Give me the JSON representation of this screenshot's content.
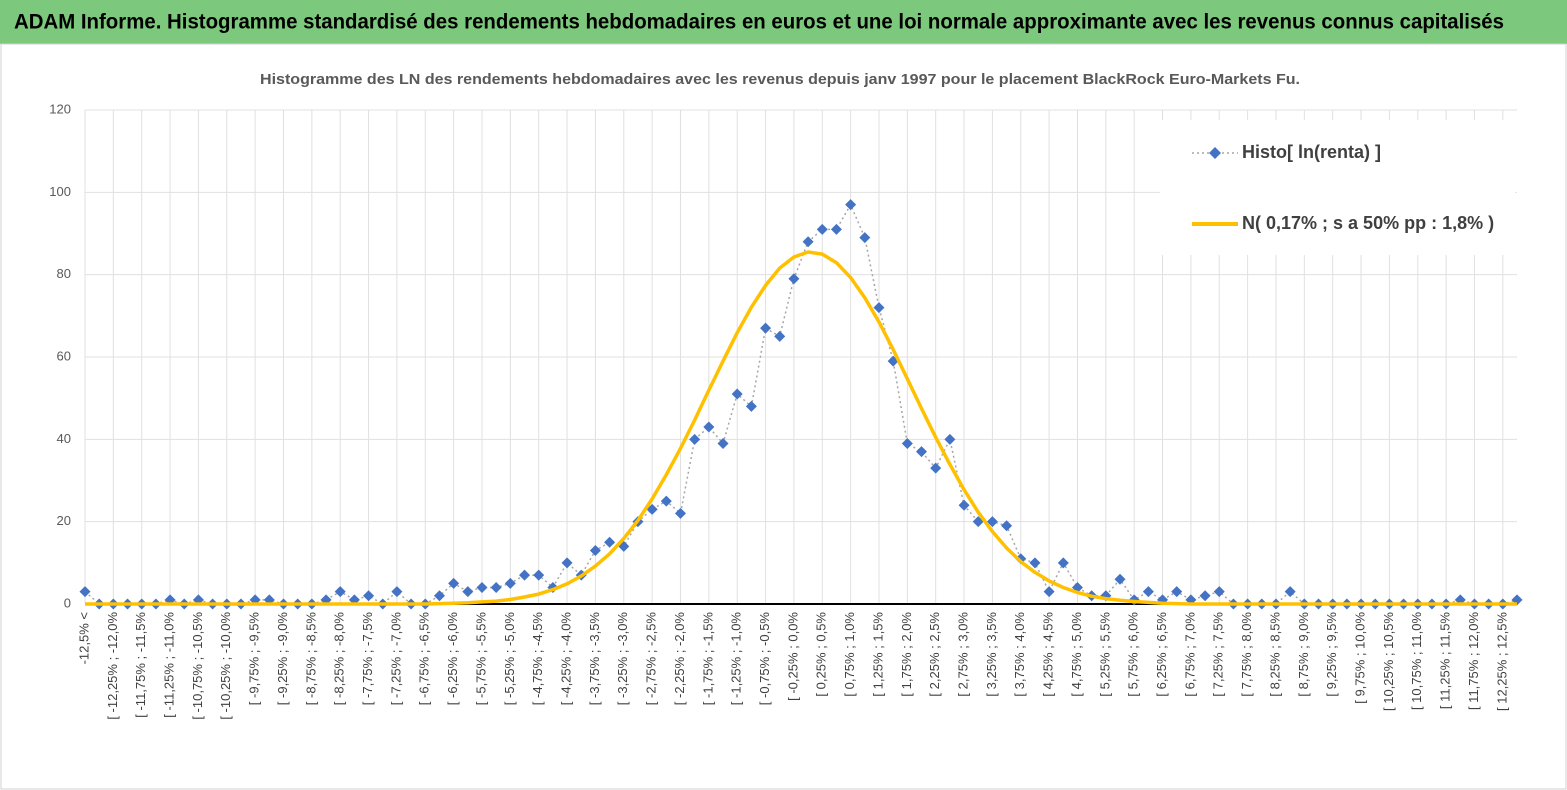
{
  "header": {
    "title": "ADAM Informe. Histogramme standardisé des rendements hebdomadaires en euros et une loi normale approximante avec les revenus connus capitalisés"
  },
  "chart_data": {
    "type": "line",
    "title": "Histogramme des LN des rendements hebdomadaires avec les revenus depuis janv 1997 pour le placement BlackRock Euro-Markets Fu.",
    "categories": [
      "-12,5% <",
      null,
      "[ -12,25% ; -12,0%",
      null,
      "[ -11,75% ; -11,5%",
      null,
      "[ -11,25% ; -11,0%",
      null,
      "[ -10,75% ; -10,5%",
      null,
      "[ -10,25% ; -10,0%",
      null,
      "[ -9,75% ; -9,5%",
      null,
      "[ -9,25% ; -9,0%",
      null,
      "[ -8,75% ; -8,5%",
      null,
      "[ -8,25% ; -8,0%",
      null,
      "[ -7,75% ; -7,5%",
      null,
      "[ -7,25% ; -7,0%",
      null,
      "[ -6,75% ; -6,5%",
      null,
      "[ -6,25% ; -6,0%",
      null,
      "[ -5,75% ; -5,5%",
      null,
      "[ -5,25% ; -5,0%",
      null,
      "[ -4,75% ; -4,5%",
      null,
      "[ -4,25% ; -4,0%",
      null,
      "[ -3,75% ; -3,5%",
      null,
      "[ -3,25% ; -3,0%",
      null,
      "[ -2,75% ; -2,5%",
      null,
      "[ -2,25% ; -2,0%",
      null,
      "[ -1,75% ; -1,5%",
      null,
      "[ -1,25% ; -1,0%",
      null,
      "[ -0,75% ; -0,5%",
      null,
      "[ -0,25% ; 0,0%",
      null,
      "[ 0,25% ; 0,5%",
      null,
      "[ 0,75% ; 1,0%",
      null,
      "[ 1,25% ; 1,5%",
      null,
      "[ 1,75% ; 2,0%",
      null,
      "[ 2,25% ; 2,5%",
      null,
      "[ 2,75% ; 3,0%",
      null,
      "[ 3,25% ; 3,5%",
      null,
      "[ 3,75% ; 4,0%",
      null,
      "[ 4,25% ; 4,5%",
      null,
      "[ 4,75% ; 5,0%",
      null,
      "[ 5,25% ; 5,5%",
      null,
      "[ 5,75% ; 6,0%",
      null,
      "[ 6,25% ; 6,5%",
      null,
      "[ 6,75% ; 7,0%",
      null,
      "[ 7,25% ; 7,5%",
      null,
      "[ 7,75% ; 8,0%",
      null,
      "[ 8,25% ; 8,5%",
      null,
      "[ 8,75% ; 9,0%",
      null,
      "[ 9,25% ; 9,5%",
      null,
      "[ 9,75% ; 10,0%",
      null,
      "[ 10,25% ; 10,5%",
      null,
      "[ 10,75% ; 11,0%",
      null,
      "[ 11,25% ; 11,5%",
      null,
      "[ 11,75% ; 12,0%",
      null,
      "[ 12,25% ; 12,5%",
      null
    ],
    "series": [
      {
        "name": "Histo[ ln(renta) ]",
        "color": "#4472c4",
        "marker": "diamond",
        "line_color": "#a6a6a6",
        "dashed": true,
        "values": [
          3,
          0,
          0,
          0,
          0,
          0,
          1,
          0,
          1,
          0,
          0,
          0,
          1,
          1,
          0,
          0,
          0,
          1,
          3,
          1,
          2,
          0,
          3,
          0,
          0,
          2,
          5,
          3,
          4,
          4,
          5,
          7,
          7,
          4,
          10,
          7,
          13,
          15,
          14,
          20,
          23,
          25,
          22,
          40,
          43,
          39,
          51,
          48,
          67,
          65,
          79,
          88,
          91,
          91,
          97,
          89,
          72,
          59,
          39,
          37,
          33,
          40,
          24,
          20,
          20,
          19,
          11,
          10,
          3,
          10,
          4,
          2,
          2,
          6,
          1,
          3,
          1,
          3,
          1,
          2,
          3,
          0,
          0,
          0,
          0,
          3,
          0,
          0,
          0,
          0,
          0,
          0,
          0,
          0,
          0,
          0,
          0,
          1,
          0,
          0,
          0,
          1
        ]
      },
      {
        "name": "N( 0,17% ; s a 50% pp : 1,8% )",
        "color": "#ffc000",
        "values": [
          0,
          0,
          0,
          0,
          0,
          0,
          0,
          0,
          0,
          0,
          0,
          0,
          0,
          0,
          0,
          0,
          0,
          0,
          0,
          0,
          0,
          0,
          0,
          0,
          0,
          0.1,
          0.2,
          0.3,
          0.5,
          0.7,
          1.1,
          1.7,
          2.4,
          3.5,
          4.9,
          6.8,
          9.2,
          12.2,
          15.9,
          20.3,
          25.5,
          31.4,
          37.8,
          44.7,
          51.9,
          59.0,
          65.9,
          72.1,
          77.4,
          81.6,
          84.3,
          85.5,
          85.0,
          82.9,
          79.3,
          74.4,
          68.5,
          61.8,
          54.7,
          47.5,
          40.5,
          33.9,
          27.8,
          22.3,
          17.6,
          13.6,
          10.3,
          7.7,
          5.6,
          4.0,
          2.8,
          1.9,
          1.3,
          0.9,
          0.6,
          0.4,
          0.2,
          0.1,
          0,
          0,
          0,
          0,
          0,
          0,
          0,
          0,
          0,
          0,
          0,
          0,
          0,
          0,
          0,
          0,
          0,
          0,
          0,
          0,
          0,
          0,
          0,
          0
        ]
      }
    ],
    "ylim": [
      0,
      120
    ],
    "yticks": [
      0,
      20,
      40,
      60,
      80,
      100,
      120
    ],
    "grid": true,
    "legend": "upper right"
  }
}
